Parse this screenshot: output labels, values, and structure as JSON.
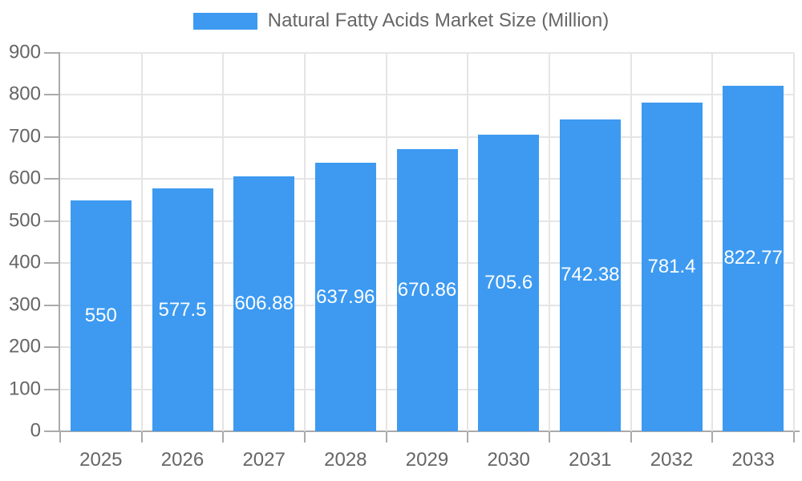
{
  "legend": {
    "label": "Natural Fatty Acids Market Size (Million)"
  },
  "chart_data": {
    "type": "bar",
    "title": "Natural Fatty Acids Market Size (Million)",
    "categories": [
      "2025",
      "2026",
      "2027",
      "2028",
      "2029",
      "2030",
      "2031",
      "2032",
      "2033"
    ],
    "values": [
      550,
      577.5,
      606.88,
      637.96,
      670.86,
      705.6,
      742.38,
      781.4,
      822.77
    ],
    "value_labels": [
      "550",
      "577.5",
      "606.88",
      "637.96",
      "670.86",
      "705.6",
      "742.38",
      "781.4",
      "822.77"
    ],
    "xlabel": "",
    "ylabel": "",
    "ylim": [
      0,
      900
    ],
    "yticks": [
      0,
      100,
      200,
      300,
      400,
      500,
      600,
      700,
      800,
      900
    ],
    "grid": true,
    "legend_position": "top",
    "colors": {
      "bar": "#3d9af0",
      "value_label": "#ffffff",
      "axis_text": "#666666",
      "axis_line": "#aaaaaa",
      "gridline": "#e5e5e5"
    }
  }
}
